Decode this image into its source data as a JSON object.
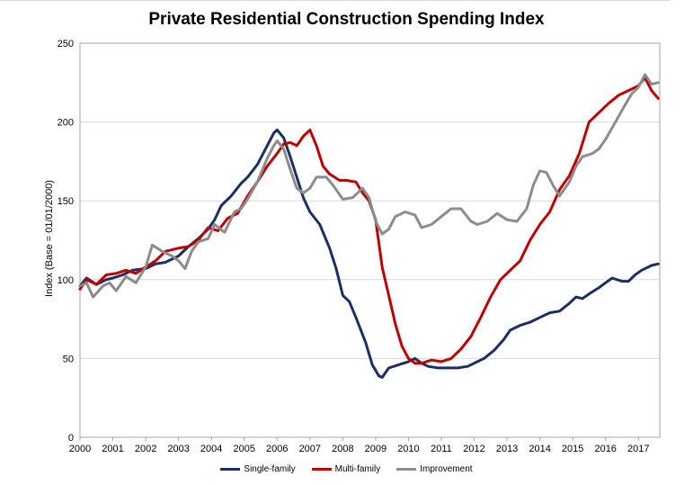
{
  "chart_data": {
    "type": "line",
    "title": "Private Residential Construction Spending Index",
    "ylabel": "Index (Base = 01/01/2000)",
    "xlabel": "",
    "xlim": [
      2000,
      2017.65
    ],
    "ylim": [
      0,
      250
    ],
    "yticks": [
      0,
      50,
      100,
      150,
      200,
      250
    ],
    "xticks": [
      2000,
      2001,
      2002,
      2003,
      2004,
      2005,
      2006,
      2007,
      2008,
      2009,
      2010,
      2011,
      2012,
      2013,
      2014,
      2015,
      2016,
      2017
    ],
    "grid": "horizontal",
    "legend_position": "bottom",
    "series": [
      {
        "name": "Single-family",
        "color": "#1b2f63",
        "points": [
          [
            2000,
            96
          ],
          [
            2000.2,
            101
          ],
          [
            2000.5,
            97
          ],
          [
            2000.8,
            100
          ],
          [
            2001,
            101
          ],
          [
            2001.3,
            103
          ],
          [
            2001.6,
            106
          ],
          [
            2002,
            107
          ],
          [
            2002.3,
            110
          ],
          [
            2002.6,
            111
          ],
          [
            2003,
            115
          ],
          [
            2003.3,
            121
          ],
          [
            2003.6,
            126
          ],
          [
            2003.9,
            132
          ],
          [
            2004.1,
            138
          ],
          [
            2004.3,
            147
          ],
          [
            2004.6,
            153
          ],
          [
            2004.9,
            161
          ],
          [
            2005.1,
            165
          ],
          [
            2005.4,
            173
          ],
          [
            2005.7,
            185
          ],
          [
            2005.9,
            193
          ],
          [
            2006.0,
            195
          ],
          [
            2006.2,
            190
          ],
          [
            2006.4,
            178
          ],
          [
            2006.6,
            165
          ],
          [
            2006.8,
            152
          ],
          [
            2007.0,
            143
          ],
          [
            2007.3,
            135
          ],
          [
            2007.6,
            120
          ],
          [
            2007.8,
            107
          ],
          [
            2008.0,
            90
          ],
          [
            2008.2,
            86
          ],
          [
            2008.4,
            76
          ],
          [
            2008.7,
            60
          ],
          [
            2008.9,
            46
          ],
          [
            2009.1,
            39
          ],
          [
            2009.2,
            38
          ],
          [
            2009.4,
            44
          ],
          [
            2009.7,
            46
          ],
          [
            2010.0,
            48
          ],
          [
            2010.2,
            50
          ],
          [
            2010.4,
            47
          ],
          [
            2010.6,
            45
          ],
          [
            2010.9,
            44
          ],
          [
            2011.2,
            44
          ],
          [
            2011.5,
            44
          ],
          [
            2011.8,
            45
          ],
          [
            2012.0,
            47
          ],
          [
            2012.3,
            50
          ],
          [
            2012.6,
            55
          ],
          [
            2012.9,
            62
          ],
          [
            2013.1,
            68
          ],
          [
            2013.4,
            71
          ],
          [
            2013.7,
            73
          ],
          [
            2014.0,
            76
          ],
          [
            2014.3,
            79
          ],
          [
            2014.6,
            80
          ],
          [
            2014.9,
            85
          ],
          [
            2015.1,
            89
          ],
          [
            2015.3,
            88
          ],
          [
            2015.5,
            91
          ],
          [
            2015.8,
            95
          ],
          [
            2016.0,
            98
          ],
          [
            2016.2,
            101
          ],
          [
            2016.5,
            99
          ],
          [
            2016.7,
            99
          ],
          [
            2016.9,
            103
          ],
          [
            2017.1,
            106
          ],
          [
            2017.4,
            109
          ],
          [
            2017.6,
            110
          ]
        ]
      },
      {
        "name": "Multi-family",
        "color": "#c00000",
        "points": [
          [
            2000,
            94
          ],
          [
            2000.2,
            100
          ],
          [
            2000.5,
            97
          ],
          [
            2000.8,
            103
          ],
          [
            2001.1,
            104
          ],
          [
            2001.4,
            106
          ],
          [
            2001.7,
            104
          ],
          [
            2002,
            108
          ],
          [
            2002.3,
            112
          ],
          [
            2002.6,
            118
          ],
          [
            2003.0,
            120
          ],
          [
            2003.3,
            121
          ],
          [
            2003.6,
            125
          ],
          [
            2003.9,
            133
          ],
          [
            2004.2,
            131
          ],
          [
            2004.5,
            139
          ],
          [
            2004.8,
            142
          ],
          [
            2005.1,
            153
          ],
          [
            2005.4,
            162
          ],
          [
            2005.7,
            172
          ],
          [
            2006.0,
            180
          ],
          [
            2006.2,
            186
          ],
          [
            2006.4,
            187
          ],
          [
            2006.6,
            185
          ],
          [
            2006.8,
            191
          ],
          [
            2007.0,
            195
          ],
          [
            2007.2,
            185
          ],
          [
            2007.4,
            172
          ],
          [
            2007.6,
            167
          ],
          [
            2007.9,
            163
          ],
          [
            2008.1,
            163
          ],
          [
            2008.4,
            162
          ],
          [
            2008.6,
            155
          ],
          [
            2008.8,
            150
          ],
          [
            2009.0,
            138
          ],
          [
            2009.2,
            108
          ],
          [
            2009.4,
            90
          ],
          [
            2009.6,
            72
          ],
          [
            2009.8,
            58
          ],
          [
            2010.0,
            50
          ],
          [
            2010.2,
            47
          ],
          [
            2010.4,
            47
          ],
          [
            2010.7,
            49
          ],
          [
            2011.0,
            48
          ],
          [
            2011.3,
            50
          ],
          [
            2011.6,
            56
          ],
          [
            2011.9,
            64
          ],
          [
            2012.2,
            76
          ],
          [
            2012.5,
            89
          ],
          [
            2012.8,
            100
          ],
          [
            2013.1,
            106
          ],
          [
            2013.4,
            112
          ],
          [
            2013.7,
            125
          ],
          [
            2014.0,
            135
          ],
          [
            2014.3,
            143
          ],
          [
            2014.6,
            157
          ],
          [
            2014.9,
            166
          ],
          [
            2015.2,
            180
          ],
          [
            2015.5,
            200
          ],
          [
            2015.8,
            206
          ],
          [
            2016.1,
            212
          ],
          [
            2016.4,
            217
          ],
          [
            2016.7,
            220
          ],
          [
            2017.0,
            223
          ],
          [
            2017.2,
            228
          ],
          [
            2017.4,
            220
          ],
          [
            2017.6,
            215
          ]
        ]
      },
      {
        "name": "Improvement",
        "color": "#8c8c8c",
        "points": [
          [
            2000,
            96
          ],
          [
            2000.2,
            98
          ],
          [
            2000.4,
            89
          ],
          [
            2000.7,
            96
          ],
          [
            2000.9,
            98
          ],
          [
            2001.1,
            93
          ],
          [
            2001.4,
            102
          ],
          [
            2001.7,
            98
          ],
          [
            2002.0,
            108
          ],
          [
            2002.2,
            122
          ],
          [
            2002.5,
            118
          ],
          [
            2002.8,
            115
          ],
          [
            2003.0,
            112
          ],
          [
            2003.2,
            107
          ],
          [
            2003.4,
            118
          ],
          [
            2003.6,
            124
          ],
          [
            2003.9,
            126
          ],
          [
            2004.1,
            135
          ],
          [
            2004.4,
            130
          ],
          [
            2004.7,
            143
          ],
          [
            2004.9,
            145
          ],
          [
            2005.1,
            151
          ],
          [
            2005.4,
            162
          ],
          [
            2005.7,
            177
          ],
          [
            2005.9,
            185
          ],
          [
            2006.0,
            188
          ],
          [
            2006.2,
            183
          ],
          [
            2006.4,
            170
          ],
          [
            2006.6,
            158
          ],
          [
            2006.8,
            155
          ],
          [
            2007.0,
            158
          ],
          [
            2007.2,
            165
          ],
          [
            2007.5,
            165
          ],
          [
            2007.7,
            160
          ],
          [
            2008.0,
            151
          ],
          [
            2008.3,
            152
          ],
          [
            2008.6,
            158
          ],
          [
            2008.8,
            152
          ],
          [
            2009.0,
            137
          ],
          [
            2009.2,
            129
          ],
          [
            2009.4,
            132
          ],
          [
            2009.6,
            140
          ],
          [
            2009.9,
            143
          ],
          [
            2010.2,
            141
          ],
          [
            2010.4,
            133
          ],
          [
            2010.7,
            135
          ],
          [
            2011.0,
            140
          ],
          [
            2011.3,
            145
          ],
          [
            2011.6,
            145
          ],
          [
            2011.9,
            137
          ],
          [
            2012.1,
            135
          ],
          [
            2012.4,
            137
          ],
          [
            2012.7,
            142
          ],
          [
            2013.0,
            138
          ],
          [
            2013.3,
            137
          ],
          [
            2013.6,
            145
          ],
          [
            2013.8,
            160
          ],
          [
            2014.0,
            169
          ],
          [
            2014.2,
            168
          ],
          [
            2014.4,
            160
          ],
          [
            2014.6,
            153
          ],
          [
            2014.9,
            162
          ],
          [
            2015.1,
            172
          ],
          [
            2015.3,
            178
          ],
          [
            2015.6,
            180
          ],
          [
            2015.8,
            183
          ],
          [
            2016.0,
            189
          ],
          [
            2016.3,
            200
          ],
          [
            2016.6,
            211
          ],
          [
            2016.8,
            218
          ],
          [
            2017.0,
            222
          ],
          [
            2017.2,
            230
          ],
          [
            2017.4,
            224
          ],
          [
            2017.6,
            225
          ]
        ]
      }
    ]
  }
}
